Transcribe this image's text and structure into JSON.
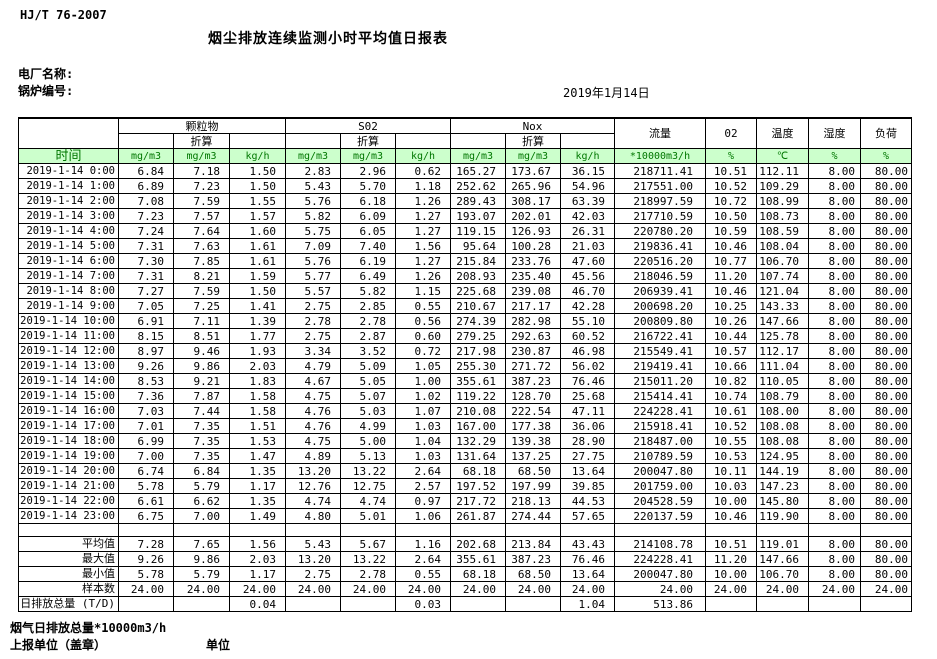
{
  "page": {
    "standard_code": "HJ/T  76-2007",
    "title": "烟尘排放连续监测小时平均值日报表",
    "plant_name_label": "电厂名称:",
    "boiler_no_label": "锅炉编号:",
    "report_date": "2019年1月14日",
    "footer_flow_total_note": "烟气日排放总量*10000m3/h",
    "footer_report_unit_label": "上报单位（盖章）",
    "footer_unit_label": "单位"
  },
  "colors": {
    "header_green_bg": "#ccffcc",
    "header_green_text": "#007700",
    "border": "#000000"
  },
  "table": {
    "time_header": "时间",
    "group_headers": {
      "pm": "颗粒物",
      "so2": "S02",
      "nox": "Nox"
    },
    "converted_label": "折算",
    "single_headers": {
      "flow": "流量",
      "o2": "02",
      "temp": "温度",
      "humidity": "湿度",
      "load": "负荷"
    },
    "units": [
      "mg/m3",
      "mg/m3",
      "kg/h",
      "mg/m3",
      "mg/m3",
      "kg/h",
      "mg/m3",
      "mg/m3",
      "kg/h",
      "*10000m3/h",
      "%",
      "℃",
      "%",
      "%"
    ],
    "rows": [
      {
        "time": "2019-1-14 0:00",
        "values": [
          "6.84",
          "7.18",
          "1.50",
          "2.83",
          "2.96",
          "0.62",
          "165.27",
          "173.67",
          "36.15",
          "218711.41",
          "10.51",
          "112.11",
          "8.00",
          "80.00"
        ]
      },
      {
        "time": "2019-1-14 1:00",
        "values": [
          "6.89",
          "7.23",
          "1.50",
          "5.43",
          "5.70",
          "1.18",
          "252.62",
          "265.96",
          "54.96",
          "217551.00",
          "10.52",
          "109.29",
          "8.00",
          "80.00"
        ]
      },
      {
        "time": "2019-1-14 2:00",
        "values": [
          "7.08",
          "7.59",
          "1.55",
          "5.76",
          "6.18",
          "1.26",
          "289.43",
          "308.17",
          "63.39",
          "218997.59",
          "10.72",
          "108.99",
          "8.00",
          "80.00"
        ]
      },
      {
        "time": "2019-1-14 3:00",
        "values": [
          "7.23",
          "7.57",
          "1.57",
          "5.82",
          "6.09",
          "1.27",
          "193.07",
          "202.01",
          "42.03",
          "217710.59",
          "10.50",
          "108.73",
          "8.00",
          "80.00"
        ]
      },
      {
        "time": "2019-1-14 4:00",
        "values": [
          "7.24",
          "7.64",
          "1.60",
          "5.75",
          "6.05",
          "1.27",
          "119.15",
          "126.93",
          "26.31",
          "220780.20",
          "10.59",
          "108.59",
          "8.00",
          "80.00"
        ]
      },
      {
        "time": "2019-1-14 5:00",
        "values": [
          "7.31",
          "7.63",
          "1.61",
          "7.09",
          "7.40",
          "1.56",
          "95.64",
          "100.28",
          "21.03",
          "219836.41",
          "10.46",
          "108.04",
          "8.00",
          "80.00"
        ]
      },
      {
        "time": "2019-1-14 6:00",
        "values": [
          "7.30",
          "7.85",
          "1.61",
          "5.76",
          "6.19",
          "1.27",
          "215.84",
          "233.76",
          "47.60",
          "220516.20",
          "10.77",
          "106.70",
          "8.00",
          "80.00"
        ]
      },
      {
        "time": "2019-1-14 7:00",
        "values": [
          "7.31",
          "8.21",
          "1.59",
          "5.77",
          "6.49",
          "1.26",
          "208.93",
          "235.40",
          "45.56",
          "218046.59",
          "11.20",
          "107.74",
          "8.00",
          "80.00"
        ]
      },
      {
        "time": "2019-1-14 8:00",
        "values": [
          "7.27",
          "7.59",
          "1.50",
          "5.57",
          "5.82",
          "1.15",
          "225.68",
          "239.08",
          "46.70",
          "206939.41",
          "10.46",
          "121.04",
          "8.00",
          "80.00"
        ]
      },
      {
        "time": "2019-1-14 9:00",
        "values": [
          "7.05",
          "7.25",
          "1.41",
          "2.75",
          "2.85",
          "0.55",
          "210.67",
          "217.17",
          "42.28",
          "200698.20",
          "10.25",
          "143.33",
          "8.00",
          "80.00"
        ]
      },
      {
        "time": "2019-1-14 10:00",
        "values": [
          "6.91",
          "7.11",
          "1.39",
          "2.78",
          "2.78",
          "0.56",
          "274.39",
          "282.98",
          "55.10",
          "200809.80",
          "10.26",
          "147.66",
          "8.00",
          "80.00"
        ]
      },
      {
        "time": "2019-1-14 11:00",
        "values": [
          "8.15",
          "8.51",
          "1.77",
          "2.75",
          "2.87",
          "0.60",
          "279.25",
          "292.63",
          "60.52",
          "216722.41",
          "10.44",
          "125.78",
          "8.00",
          "80.00"
        ]
      },
      {
        "time": "2019-1-14 12:00",
        "values": [
          "8.97",
          "9.46",
          "1.93",
          "3.34",
          "3.52",
          "0.72",
          "217.98",
          "230.87",
          "46.98",
          "215549.41",
          "10.57",
          "112.17",
          "8.00",
          "80.00"
        ]
      },
      {
        "time": "2019-1-14 13:00",
        "values": [
          "9.26",
          "9.86",
          "2.03",
          "4.79",
          "5.09",
          "1.05",
          "255.30",
          "271.72",
          "56.02",
          "219419.41",
          "10.66",
          "111.04",
          "8.00",
          "80.00"
        ]
      },
      {
        "time": "2019-1-14 14:00",
        "values": [
          "8.53",
          "9.21",
          "1.83",
          "4.67",
          "5.05",
          "1.00",
          "355.61",
          "387.23",
          "76.46",
          "215011.20",
          "10.82",
          "110.05",
          "8.00",
          "80.00"
        ]
      },
      {
        "time": "2019-1-14 15:00",
        "values": [
          "7.36",
          "7.87",
          "1.58",
          "4.75",
          "5.07",
          "1.02",
          "119.22",
          "128.70",
          "25.68",
          "215414.41",
          "10.74",
          "108.79",
          "8.00",
          "80.00"
        ]
      },
      {
        "time": "2019-1-14 16:00",
        "values": [
          "7.03",
          "7.44",
          "1.58",
          "4.76",
          "5.03",
          "1.07",
          "210.08",
          "222.54",
          "47.11",
          "224228.41",
          "10.61",
          "108.00",
          "8.00",
          "80.00"
        ]
      },
      {
        "time": "2019-1-14 17:00",
        "values": [
          "7.01",
          "7.35",
          "1.51",
          "4.76",
          "4.99",
          "1.03",
          "167.00",
          "177.38",
          "36.06",
          "215918.41",
          "10.52",
          "108.08",
          "8.00",
          "80.00"
        ]
      },
      {
        "time": "2019-1-14 18:00",
        "values": [
          "6.99",
          "7.35",
          "1.53",
          "4.75",
          "5.00",
          "1.04",
          "132.29",
          "139.38",
          "28.90",
          "218487.00",
          "10.55",
          "108.08",
          "8.00",
          "80.00"
        ]
      },
      {
        "time": "2019-1-14 19:00",
        "values": [
          "7.00",
          "7.35",
          "1.47",
          "4.89",
          "5.13",
          "1.03",
          "131.64",
          "137.25",
          "27.75",
          "210789.59",
          "10.53",
          "124.95",
          "8.00",
          "80.00"
        ]
      },
      {
        "time": "2019-1-14 20:00",
        "values": [
          "6.74",
          "6.84",
          "1.35",
          "13.20",
          "13.22",
          "2.64",
          "68.18",
          "68.50",
          "13.64",
          "200047.80",
          "10.11",
          "144.19",
          "8.00",
          "80.00"
        ]
      },
      {
        "time": "2019-1-14 21:00",
        "values": [
          "5.78",
          "5.79",
          "1.17",
          "12.76",
          "12.75",
          "2.57",
          "197.52",
          "197.99",
          "39.85",
          "201759.00",
          "10.03",
          "147.23",
          "8.00",
          "80.00"
        ]
      },
      {
        "time": "2019-1-14 22:00",
        "values": [
          "6.61",
          "6.62",
          "1.35",
          "4.74",
          "4.74",
          "0.97",
          "217.72",
          "218.13",
          "44.53",
          "204528.59",
          "10.00",
          "145.80",
          "8.00",
          "80.00"
        ]
      },
      {
        "time": "2019-1-14 23:00",
        "values": [
          "6.75",
          "7.00",
          "1.49",
          "4.80",
          "5.01",
          "1.06",
          "261.87",
          "274.44",
          "57.65",
          "220137.59",
          "10.46",
          "119.90",
          "8.00",
          "80.00"
        ]
      }
    ],
    "summary_rows": [
      {
        "label": "平均值",
        "values": [
          "7.28",
          "7.65",
          "1.56",
          "5.43",
          "5.67",
          "1.16",
          "202.68",
          "213.84",
          "43.43",
          "214108.78",
          "10.51",
          "119.01",
          "8.00",
          "80.00"
        ]
      },
      {
        "label": "最大值",
        "values": [
          "9.26",
          "9.86",
          "2.03",
          "13.20",
          "13.22",
          "2.64",
          "355.61",
          "387.23",
          "76.46",
          "224228.41",
          "11.20",
          "147.66",
          "8.00",
          "80.00"
        ]
      },
      {
        "label": "最小值",
        "values": [
          "5.78",
          "5.79",
          "1.17",
          "2.75",
          "2.78",
          "0.55",
          "68.18",
          "68.50",
          "13.64",
          "200047.80",
          "10.00",
          "106.70",
          "8.00",
          "80.00"
        ]
      },
      {
        "label": "样本数",
        "values": [
          "24.00",
          "24.00",
          "24.00",
          "24.00",
          "24.00",
          "24.00",
          "24.00",
          "24.00",
          "24.00",
          "24.00",
          "24.00",
          "24.00",
          "24.00",
          "24.00"
        ]
      },
      {
        "label": "日排放总量 (T/D)",
        "values": [
          "",
          "",
          "0.04",
          "",
          "",
          "0.03",
          "",
          "",
          "1.04",
          "513.86",
          "",
          "",
          "",
          ""
        ]
      }
    ]
  }
}
